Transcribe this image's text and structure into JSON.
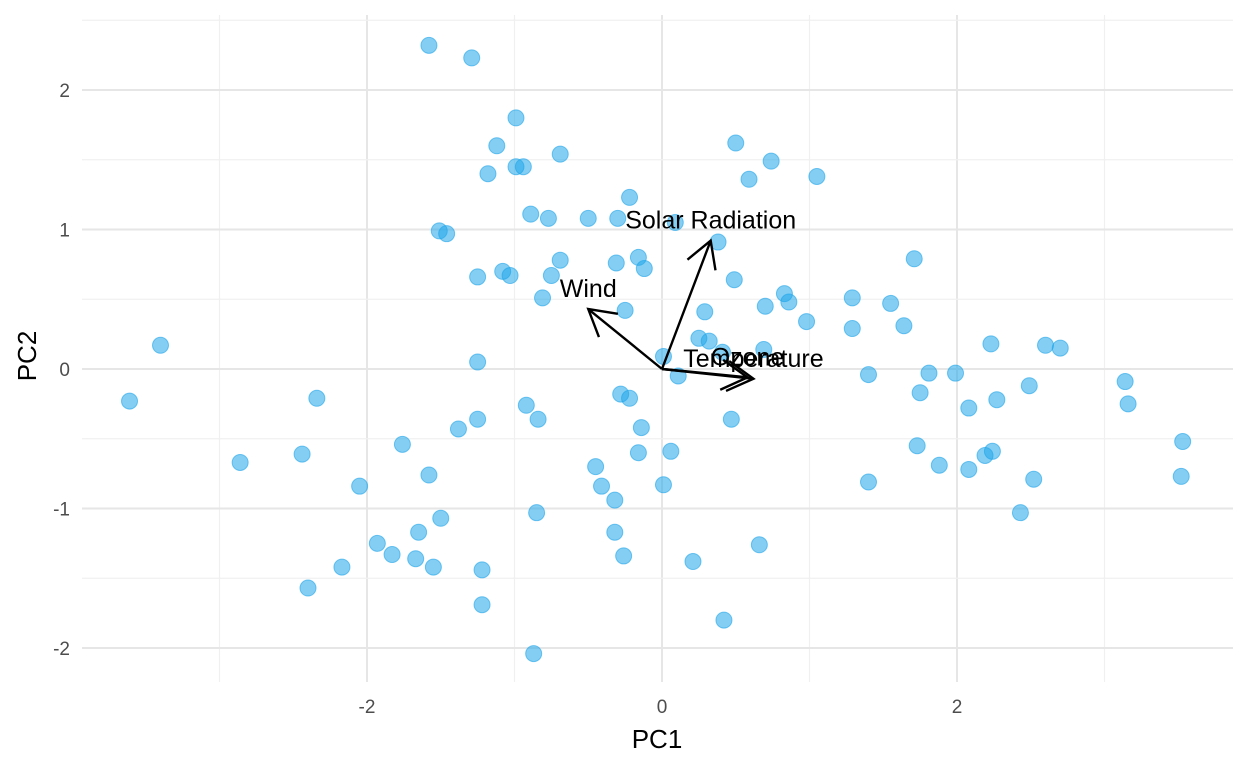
{
  "chart_data": {
    "type": "scatter",
    "title": "",
    "xlabel": "PC1",
    "ylabel": "PC2",
    "xlim": [
      -3.95,
      3.9
    ],
    "ylim": [
      -2.2,
      2.5
    ],
    "grid": true,
    "x_ticks": [
      -2,
      0,
      2
    ],
    "x_tick_labels": [
      "-2",
      "0",
      "2"
    ],
    "y_ticks": [
      -2,
      -1,
      0,
      1,
      2
    ],
    "y_tick_labels": [
      "-2",
      "-1",
      "0",
      "1",
      "2"
    ],
    "point_color": "#1fa5ea",
    "arrow_color": "#000000",
    "points": [
      {
        "x": -1.58,
        "y": 2.32
      },
      {
        "x": -1.29,
        "y": 2.23
      },
      {
        "x": -0.99,
        "y": 1.8
      },
      {
        "x": -1.12,
        "y": 1.6
      },
      {
        "x": 0.5,
        "y": 1.62
      },
      {
        "x": -0.69,
        "y": 1.54
      },
      {
        "x": -0.99,
        "y": 1.45
      },
      {
        "x": -0.94,
        "y": 1.45
      },
      {
        "x": -1.18,
        "y": 1.4
      },
      {
        "x": 0.74,
        "y": 1.49
      },
      {
        "x": 0.59,
        "y": 1.36
      },
      {
        "x": 1.05,
        "y": 1.38
      },
      {
        "x": -0.22,
        "y": 1.23
      },
      {
        "x": -0.89,
        "y": 1.11
      },
      {
        "x": -0.77,
        "y": 1.08
      },
      {
        "x": -0.5,
        "y": 1.08
      },
      {
        "x": -0.3,
        "y": 1.08
      },
      {
        "x": 0.09,
        "y": 1.05
      },
      {
        "x": -1.51,
        "y": 0.99
      },
      {
        "x": -1.46,
        "y": 0.97
      },
      {
        "x": 0.38,
        "y": 0.91
      },
      {
        "x": -0.16,
        "y": 0.8
      },
      {
        "x": -0.31,
        "y": 0.76
      },
      {
        "x": -0.12,
        "y": 0.72
      },
      {
        "x": 1.71,
        "y": 0.79
      },
      {
        "x": -1.08,
        "y": 0.7
      },
      {
        "x": -1.03,
        "y": 0.67
      },
      {
        "x": -1.25,
        "y": 0.66
      },
      {
        "x": -0.75,
        "y": 0.67
      },
      {
        "x": -0.69,
        "y": 0.78
      },
      {
        "x": 0.49,
        "y": 0.64
      },
      {
        "x": -0.81,
        "y": 0.51
      },
      {
        "x": 0.83,
        "y": 0.54
      },
      {
        "x": 0.86,
        "y": 0.48
      },
      {
        "x": 0.7,
        "y": 0.45
      },
      {
        "x": 1.29,
        "y": 0.51
      },
      {
        "x": 1.55,
        "y": 0.47
      },
      {
        "x": -0.25,
        "y": 0.42
      },
      {
        "x": 0.29,
        "y": 0.41
      },
      {
        "x": 0.98,
        "y": 0.34
      },
      {
        "x": 1.29,
        "y": 0.29
      },
      {
        "x": 1.64,
        "y": 0.31
      },
      {
        "x": 0.25,
        "y": 0.22
      },
      {
        "x": 0.32,
        "y": 0.2
      },
      {
        "x": 0.41,
        "y": 0.12
      },
      {
        "x": 0.69,
        "y": 0.14
      },
      {
        "x": 2.23,
        "y": 0.18
      },
      {
        "x": 2.6,
        "y": 0.17
      },
      {
        "x": 2.7,
        "y": 0.15
      },
      {
        "x": -3.4,
        "y": 0.17
      },
      {
        "x": 0.01,
        "y": 0.09
      },
      {
        "x": -1.25,
        "y": 0.05
      },
      {
        "x": 0.11,
        "y": -0.05
      },
      {
        "x": 1.4,
        "y": -0.04
      },
      {
        "x": 1.81,
        "y": -0.03
      },
      {
        "x": 1.99,
        "y": -0.03
      },
      {
        "x": 3.14,
        "y": -0.09
      },
      {
        "x": 2.49,
        "y": -0.12
      },
      {
        "x": 1.75,
        "y": -0.17
      },
      {
        "x": -3.61,
        "y": -0.23
      },
      {
        "x": -2.34,
        "y": -0.21
      },
      {
        "x": -0.28,
        "y": -0.18
      },
      {
        "x": -0.22,
        "y": -0.21
      },
      {
        "x": 2.27,
        "y": -0.22
      },
      {
        "x": 3.16,
        "y": -0.25
      },
      {
        "x": -0.92,
        "y": -0.26
      },
      {
        "x": 2.08,
        "y": -0.28
      },
      {
        "x": -0.84,
        "y": -0.36
      },
      {
        "x": -1.25,
        "y": -0.36
      },
      {
        "x": 0.47,
        "y": -0.36
      },
      {
        "x": -1.38,
        "y": -0.43
      },
      {
        "x": -0.14,
        "y": -0.42
      },
      {
        "x": -1.76,
        "y": -0.54
      },
      {
        "x": 3.53,
        "y": -0.52
      },
      {
        "x": 1.73,
        "y": -0.55
      },
      {
        "x": -2.44,
        "y": -0.61
      },
      {
        "x": -0.16,
        "y": -0.6
      },
      {
        "x": 0.06,
        "y": -0.59
      },
      {
        "x": 2.24,
        "y": -0.59
      },
      {
        "x": 2.19,
        "y": -0.62
      },
      {
        "x": -2.86,
        "y": -0.67
      },
      {
        "x": 1.88,
        "y": -0.69
      },
      {
        "x": -0.45,
        "y": -0.7
      },
      {
        "x": 2.08,
        "y": -0.72
      },
      {
        "x": -1.58,
        "y": -0.76
      },
      {
        "x": 3.52,
        "y": -0.77
      },
      {
        "x": 2.52,
        "y": -0.79
      },
      {
        "x": 1.4,
        "y": -0.81
      },
      {
        "x": -2.05,
        "y": -0.84
      },
      {
        "x": -0.41,
        "y": -0.84
      },
      {
        "x": 0.01,
        "y": -0.83
      },
      {
        "x": -0.32,
        "y": -0.94
      },
      {
        "x": -0.85,
        "y": -1.03
      },
      {
        "x": 2.43,
        "y": -1.03
      },
      {
        "x": -1.5,
        "y": -1.07
      },
      {
        "x": -1.65,
        "y": -1.17
      },
      {
        "x": -0.32,
        "y": -1.17
      },
      {
        "x": -1.93,
        "y": -1.25
      },
      {
        "x": 0.66,
        "y": -1.26
      },
      {
        "x": -1.83,
        "y": -1.33
      },
      {
        "x": -1.67,
        "y": -1.36
      },
      {
        "x": -0.26,
        "y": -1.34
      },
      {
        "x": 0.21,
        "y": -1.38
      },
      {
        "x": -1.55,
        "y": -1.42
      },
      {
        "x": -2.17,
        "y": -1.42
      },
      {
        "x": -1.22,
        "y": -1.44
      },
      {
        "x": -2.4,
        "y": -1.57
      },
      {
        "x": -1.22,
        "y": -1.69
      },
      {
        "x": 0.42,
        "y": -1.8
      },
      {
        "x": -0.87,
        "y": -2.04
      }
    ],
    "loadings": [
      {
        "name": "Solar Radiation",
        "x": 0.33,
        "y": 0.92
      },
      {
        "name": "Wind",
        "x": -0.5,
        "y": 0.43
      },
      {
        "name": "Ozone",
        "x": 0.58,
        "y": -0.06
      },
      {
        "name": "Temperature",
        "x": 0.62,
        "y": -0.07
      }
    ]
  }
}
